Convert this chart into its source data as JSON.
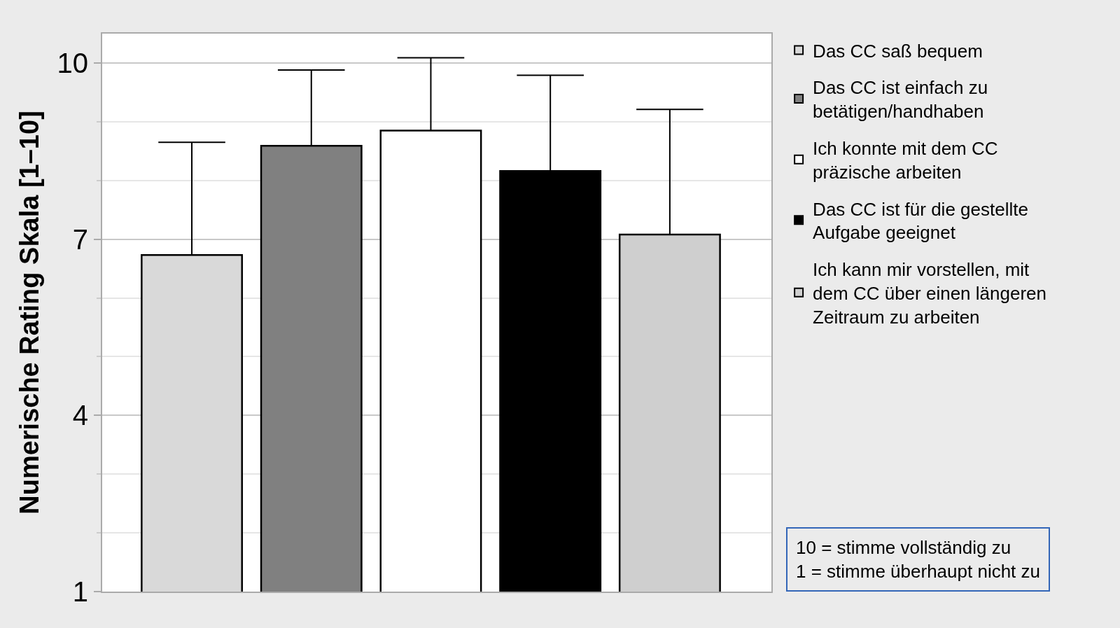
{
  "chart_data": {
    "type": "bar",
    "ylabel": "Numerische Rating Skala [1–10]",
    "categories": [
      null,
      null,
      null,
      null,
      null
    ],
    "series": [
      {
        "name": "Das CC saß bequem",
        "color": "#d9d9d9",
        "values": [
          6.73,
          null,
          null,
          null,
          null
        ],
        "errors": [
          [
            6.73,
            8.65
          ],
          null,
          null,
          null,
          null
        ]
      },
      {
        "name": "Das CC ist einfach zu betätigen/handhaben",
        "color": "#808080",
        "values": [
          null,
          8.59,
          null,
          null,
          null
        ],
        "errors": [
          null,
          [
            8.59,
            9.88
          ],
          null,
          null,
          null
        ]
      },
      {
        "name": "Ich konnte mit dem CC präzische arbeiten",
        "color": "#ffffff",
        "values": [
          null,
          null,
          8.85,
          null,
          null
        ],
        "errors": [
          null,
          null,
          [
            8.85,
            10.09
          ],
          null,
          null
        ]
      },
      {
        "name": "Das CC ist für die gestellte Aufgabe geeignet",
        "color": "#000000",
        "values": [
          null,
          null,
          null,
          8.16,
          null
        ],
        "errors": [
          null,
          null,
          null,
          [
            8.16,
            9.79
          ],
          null
        ]
      },
      {
        "name": "Ich kann mir vorstellen, mit dem CC über einen längeren Zeitraum zu arbeiten",
        "color": "#cfcfcf",
        "values": [
          null,
          null,
          null,
          null,
          7.08
        ],
        "errors": [
          null,
          null,
          null,
          null,
          [
            7.08,
            9.21
          ]
        ]
      }
    ],
    "ylim": [
      1,
      10.5
    ],
    "yticks": [
      1,
      {
        "value": 2,
        "label": null
      },
      {
        "value": 3,
        "label": null
      },
      4,
      {
        "value": 5,
        "label": null
      },
      {
        "value": 6,
        "label": null
      },
      7,
      {
        "value": 8,
        "label": null
      },
      {
        "value": 9,
        "label": null
      },
      10
    ],
    "grid": "y",
    "legend": "right",
    "tick_labels": "y",
    "annotations": [
      "10 = stimme vollständig zu",
      "1 = stimme überhaupt nicht zu"
    ]
  }
}
